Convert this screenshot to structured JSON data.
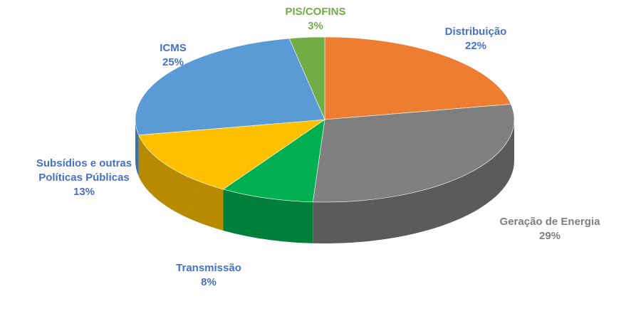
{
  "chart_data": {
    "type": "pie3d",
    "categories": [
      "Distribuição",
      "Geração de Energia",
      "Transmissão",
      "Subsídios e outras Políticas Públicas",
      "ICMS",
      "PIS/COFINS"
    ],
    "values": [
      22,
      29,
      8,
      13,
      25,
      3
    ],
    "value_labels": [
      "22%",
      "29%",
      "8%",
      "13%",
      "25%",
      "3%"
    ],
    "colors": [
      "#ed7d31",
      "#7f7f7f",
      "#00b050",
      "#ffc000",
      "#5b9bd5",
      "#70ad47"
    ]
  }
}
